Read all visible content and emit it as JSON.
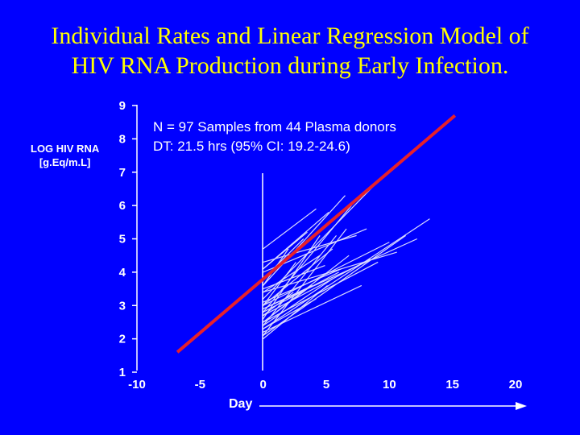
{
  "slide": {
    "title_line1": "Individual Rates and Linear Regression Model of",
    "title_line2": "HIV RNA Production during Early Infection."
  },
  "colors": {
    "background": "#0000ff",
    "title": "#ffff00",
    "axes_text": "#ffffff",
    "sample_lines": "#d9d9ff",
    "regression": "#e8202a"
  },
  "chart_data": {
    "type": "line",
    "ylabel_line1": "LOG HIV RNA",
    "ylabel_line2": "[g.Eq/m.L]",
    "xlabel": "Day",
    "xlim": [
      -10,
      20
    ],
    "ylim": [
      1,
      9
    ],
    "x_ticks": [
      "-10",
      "-5",
      "0",
      "5",
      "10",
      "15",
      "20"
    ],
    "y_ticks": [
      "9",
      "8",
      "7",
      "6",
      "5",
      "4",
      "3",
      "2",
      "1"
    ],
    "annotations": [
      "N = 97 Samples from 44 Plasma donors",
      "DT: 21.5 hrs (95% CI: 19.2-24.6)"
    ],
    "regression": {
      "x": [
        -6.8,
        15.2
      ],
      "y": [
        1.6,
        8.7
      ]
    },
    "series": [
      {
        "x": [
          0,
          6.6
        ],
        "y": [
          2.1,
          5.3
        ]
      },
      {
        "x": [
          0,
          5.8
        ],
        "y": [
          2.4,
          5.1
        ]
      },
      {
        "x": [
          0,
          7.0
        ],
        "y": [
          2.8,
          6.0
        ]
      },
      {
        "x": [
          0,
          9.3
        ],
        "y": [
          3.2,
          6.8
        ]
      },
      {
        "x": [
          0,
          6.5
        ],
        "y": [
          3.6,
          6.3
        ]
      },
      {
        "x": [
          0,
          5.2
        ],
        "y": [
          4.1,
          5.8
        ]
      },
      {
        "x": [
          0,
          4.2
        ],
        "y": [
          4.7,
          5.9
        ]
      },
      {
        "x": [
          0,
          3.5
        ],
        "y": [
          4.1,
          5.2
        ]
      },
      {
        "x": [
          0,
          7.4
        ],
        "y": [
          4.3,
          5.1
        ]
      },
      {
        "x": [
          0,
          11.3
        ],
        "y": [
          2.1,
          5.1
        ]
      },
      {
        "x": [
          0,
          12.2
        ],
        "y": [
          2.9,
          5.0
        ]
      },
      {
        "x": [
          0,
          10.0
        ],
        "y": [
          3.0,
          4.9
        ]
      },
      {
        "x": [
          0,
          13.2
        ],
        "y": [
          2.3,
          5.6
        ]
      },
      {
        "x": [
          0,
          8.5
        ],
        "y": [
          2.7,
          4.4
        ]
      },
      {
        "x": [
          0,
          4.5
        ],
        "y": [
          2.6,
          5.1
        ]
      },
      {
        "x": [
          0,
          5.5
        ],
        "y": [
          3.0,
          4.7
        ]
      },
      {
        "x": [
          0,
          6.8
        ],
        "y": [
          2.5,
          4.5
        ]
      },
      {
        "x": [
          0,
          3.2
        ],
        "y": [
          3.8,
          5.0
        ]
      },
      {
        "x": [
          0,
          2.6
        ],
        "y": [
          3.0,
          4.3
        ]
      },
      {
        "x": [
          0,
          4.5
        ],
        "y": [
          3.4,
          4.5
        ]
      },
      {
        "x": [
          0,
          5.1
        ],
        "y": [
          2.0,
          3.6
        ]
      },
      {
        "x": [
          0,
          4.2
        ],
        "y": [
          2.3,
          3.2
        ]
      },
      {
        "x": [
          0,
          6.0
        ],
        "y": [
          2.8,
          4.0
        ]
      },
      {
        "x": [
          0,
          9.1
        ],
        "y": [
          2.5,
          4.3
        ]
      },
      {
        "x": [
          0,
          10.6
        ],
        "y": [
          3.4,
          4.6
        ]
      },
      {
        "x": [
          0,
          7.8
        ],
        "y": [
          2.2,
          3.6
        ]
      },
      {
        "x": [
          0,
          3.9
        ],
        "y": [
          2.9,
          3.6
        ]
      },
      {
        "x": [
          0,
          5.5
        ],
        "y": [
          2.4,
          3.8
        ]
      },
      {
        "x": [
          0,
          2.4
        ],
        "y": [
          2.7,
          3.4
        ]
      },
      {
        "x": [
          0,
          4.9
        ],
        "y": [
          3.5,
          4.2
        ]
      },
      {
        "x": [
          0,
          6.2
        ],
        "y": [
          3.1,
          4.1
        ]
      },
      {
        "x": [
          0,
          8.2
        ],
        "y": [
          4.0,
          5.3
        ]
      },
      {
        "x": [
          0,
          3.5
        ],
        "y": [
          2.5,
          3.5
        ]
      },
      {
        "x": [
          0,
          2.0
        ],
        "y": [
          3.6,
          4.7
        ]
      }
    ]
  }
}
